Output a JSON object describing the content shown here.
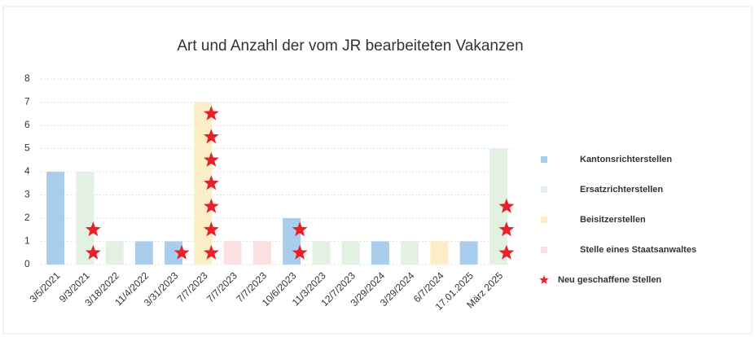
{
  "chart_data": {
    "type": "bar",
    "title": "Art und Anzahl der vom JR bearbeiteten Vakanzen",
    "categories": [
      "3/5/2021",
      "9/3/2021",
      "3/18/2022",
      "11/4/2022",
      "3/31/2023",
      "7/7/2023",
      "7/7/2023",
      "7/7/2023",
      "10/6/2023",
      "11/3/2023",
      "12/7/2023",
      "3/29/2024",
      "3/29/2024",
      "6/7/2024",
      "17.01.2025",
      "März 2025"
    ],
    "series": [
      {
        "name": "Kantonsrichterstellen",
        "color": "#a9cdec",
        "values": [
          4,
          null,
          null,
          1,
          1,
          null,
          null,
          null,
          2,
          null,
          null,
          1,
          null,
          null,
          1,
          null
        ]
      },
      {
        "name": "Ersatzrichterstellen",
        "color": "#e2f1e2",
        "values": [
          null,
          4,
          1,
          null,
          null,
          null,
          null,
          null,
          null,
          1,
          1,
          null,
          1,
          null,
          null,
          5
        ]
      },
      {
        "name": "Beisitzerstellen",
        "color": "#fcefc8",
        "values": [
          null,
          null,
          null,
          null,
          null,
          7,
          null,
          null,
          null,
          null,
          null,
          null,
          null,
          1,
          null,
          null
        ]
      },
      {
        "name": "Stelle eines Staatsanwaltes",
        "color": "#fae0e0",
        "values": [
          null,
          null,
          null,
          null,
          null,
          null,
          1,
          1,
          null,
          null,
          null,
          null,
          null,
          null,
          null,
          null
        ]
      },
      {
        "name": "Neu geschaffene Stellen",
        "color": "#e8202a",
        "marker": "star",
        "values": [
          null,
          2,
          null,
          null,
          1,
          7,
          null,
          null,
          2,
          null,
          null,
          null,
          null,
          null,
          null,
          3
        ]
      }
    ],
    "ylim": [
      0,
      8
    ],
    "yticks": [
      0,
      1,
      2,
      3,
      4,
      5,
      6,
      7,
      8
    ],
    "grid": true,
    "legend": "right"
  }
}
